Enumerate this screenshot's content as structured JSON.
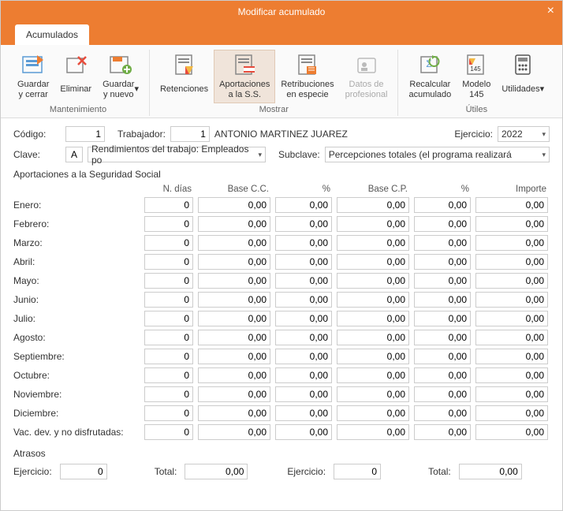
{
  "window": {
    "title": "Modificar acumulado"
  },
  "tabs": {
    "main": "Acumulados"
  },
  "ribbon": {
    "groups": [
      {
        "label": "Mantenimiento",
        "items": [
          {
            "id": "guardar-cerrar",
            "label": "Guardar\ny cerrar"
          },
          {
            "id": "eliminar",
            "label": "Eliminar"
          },
          {
            "id": "guardar-nuevo",
            "label": "Guardar\ny nuevo",
            "dropdown": true
          }
        ]
      },
      {
        "label": "Mostrar",
        "items": [
          {
            "id": "retenciones",
            "label": "Retenciones"
          },
          {
            "id": "aportaciones",
            "label": "Aportaciones\na la S.S.",
            "active": true
          },
          {
            "id": "retribuciones",
            "label": "Retribuciones\nen especie"
          },
          {
            "id": "datos-prof",
            "label": "Datos de\nprofesional",
            "disabled": true
          }
        ]
      },
      {
        "label": "Útiles",
        "items": [
          {
            "id": "recalcular",
            "label": "Recalcular\nacumulado"
          },
          {
            "id": "modelo145",
            "label": "Modelo\n145"
          },
          {
            "id": "utilidades",
            "label": "Utilidades",
            "dropdown": true
          }
        ]
      }
    ]
  },
  "header": {
    "codigo_label": "Código:",
    "codigo": "1",
    "trabajador_label": "Trabajador:",
    "trabajador_num": "1",
    "trabajador_name": "ANTONIO MARTINEZ JUAREZ",
    "ejercicio_label": "Ejercicio:",
    "ejercicio": "2022",
    "clave_label": "Clave:",
    "clave_code": "A",
    "clave_text": "Rendimientos del trabajo: Empleados po",
    "subclave_label": "Subclave:",
    "subclave_text": "Percepciones totales (el programa realizará"
  },
  "section": {
    "title": "Aportaciones a la Seguridad Social"
  },
  "table": {
    "columns": [
      "N. días",
      "Base C.C.",
      "%",
      "Base C.P.",
      "%",
      "Importe"
    ],
    "rows": [
      {
        "label": "Enero:",
        "v": [
          "0",
          "0,00",
          "0,00",
          "0,00",
          "0,00",
          "0,00"
        ]
      },
      {
        "label": "Febrero:",
        "v": [
          "0",
          "0,00",
          "0,00",
          "0,00",
          "0,00",
          "0,00"
        ]
      },
      {
        "label": "Marzo:",
        "v": [
          "0",
          "0,00",
          "0,00",
          "0,00",
          "0,00",
          "0,00"
        ]
      },
      {
        "label": "Abril:",
        "v": [
          "0",
          "0,00",
          "0,00",
          "0,00",
          "0,00",
          "0,00"
        ]
      },
      {
        "label": "Mayo:",
        "v": [
          "0",
          "0,00",
          "0,00",
          "0,00",
          "0,00",
          "0,00"
        ]
      },
      {
        "label": "Junio:",
        "v": [
          "0",
          "0,00",
          "0,00",
          "0,00",
          "0,00",
          "0,00"
        ]
      },
      {
        "label": "Julio:",
        "v": [
          "0",
          "0,00",
          "0,00",
          "0,00",
          "0,00",
          "0,00"
        ]
      },
      {
        "label": "Agosto:",
        "v": [
          "0",
          "0,00",
          "0,00",
          "0,00",
          "0,00",
          "0,00"
        ]
      },
      {
        "label": "Septiembre:",
        "v": [
          "0",
          "0,00",
          "0,00",
          "0,00",
          "0,00",
          "0,00"
        ]
      },
      {
        "label": "Octubre:",
        "v": [
          "0",
          "0,00",
          "0,00",
          "0,00",
          "0,00",
          "0,00"
        ]
      },
      {
        "label": "Noviembre:",
        "v": [
          "0",
          "0,00",
          "0,00",
          "0,00",
          "0,00",
          "0,00"
        ]
      },
      {
        "label": "Diciembre:",
        "v": [
          "0",
          "0,00",
          "0,00",
          "0,00",
          "0,00",
          "0,00"
        ]
      },
      {
        "label": "Vac. dev. y no disfrutadas:",
        "v": [
          "0",
          "0,00",
          "0,00",
          "0,00",
          "0,00",
          "0,00"
        ]
      }
    ]
  },
  "atrasos": {
    "title": "Atrasos",
    "ejercicio1_label": "Ejercicio:",
    "ejercicio1": "0",
    "total1_label": "Total:",
    "total1": "0,00",
    "ejercicio2_label": "Ejercicio:",
    "ejercicio2": "0",
    "total2_label": "Total:",
    "total2": "0,00"
  },
  "colors": {
    "accent": "#ed7d31",
    "border": "#cccccc",
    "bg": "#ffffff"
  }
}
